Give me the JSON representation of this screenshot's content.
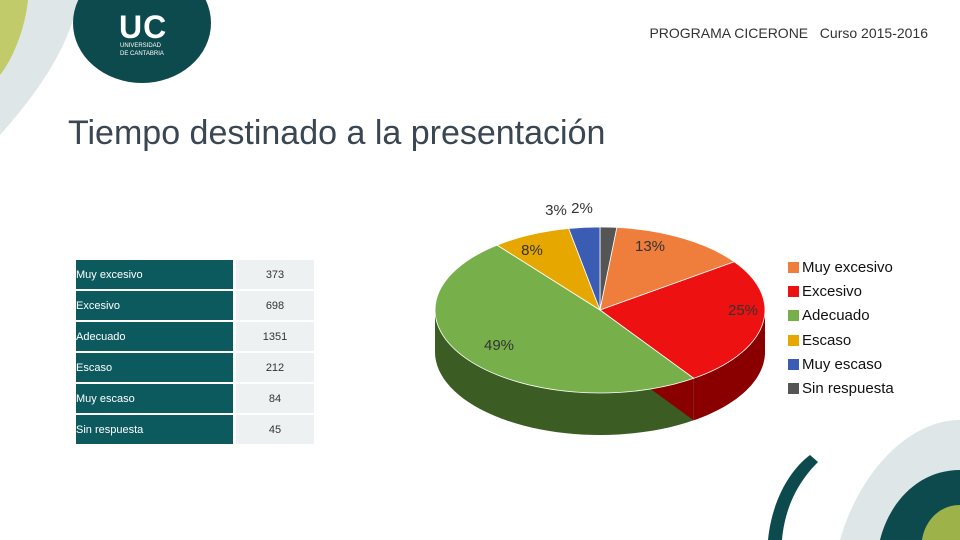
{
  "header": {
    "program": "PROGRAMA CICERONE   Curso 2015-2016"
  },
  "logo": {
    "initials": "UC",
    "name_line1": "UNIVERSIDAD",
    "name_line2": "DE CANTABRIA",
    "color": "#0d4a4e"
  },
  "slide": {
    "title": "Tiempo destinado a la presentación"
  },
  "table": {
    "rows": [
      {
        "label": "Muy excesivo",
        "value": "373"
      },
      {
        "label": "Excesivo",
        "value": "698"
      },
      {
        "label": "Adecuado",
        "value": "1351"
      },
      {
        "label": "Escaso",
        "value": "212"
      },
      {
        "label": "Muy escaso",
        "value": "84"
      },
      {
        "label": "Sin respuesta",
        "value": "45"
      }
    ]
  },
  "chart_data": {
    "type": "pie",
    "title": "",
    "categories": [
      "Muy excesivo",
      "Excesivo",
      "Adecuado",
      "Escaso",
      "Muy escaso",
      "Sin respuesta"
    ],
    "values": [
      373,
      698,
      1351,
      212,
      84,
      45
    ],
    "labels": [
      "13%",
      "25%",
      "49%",
      "8%",
      "3%",
      "2%"
    ],
    "colors": [
      "#ef7d3c",
      "#ee1111",
      "#77b04a",
      "#e6a800",
      "#3a5db3",
      "#555555"
    ],
    "side_colors": [
      "#a54c1c",
      "#8a0000",
      "#3b5c23",
      "#9a7000",
      "#1f3570",
      "#2e2e2e"
    ],
    "legend_position": "right",
    "style": "3d"
  }
}
